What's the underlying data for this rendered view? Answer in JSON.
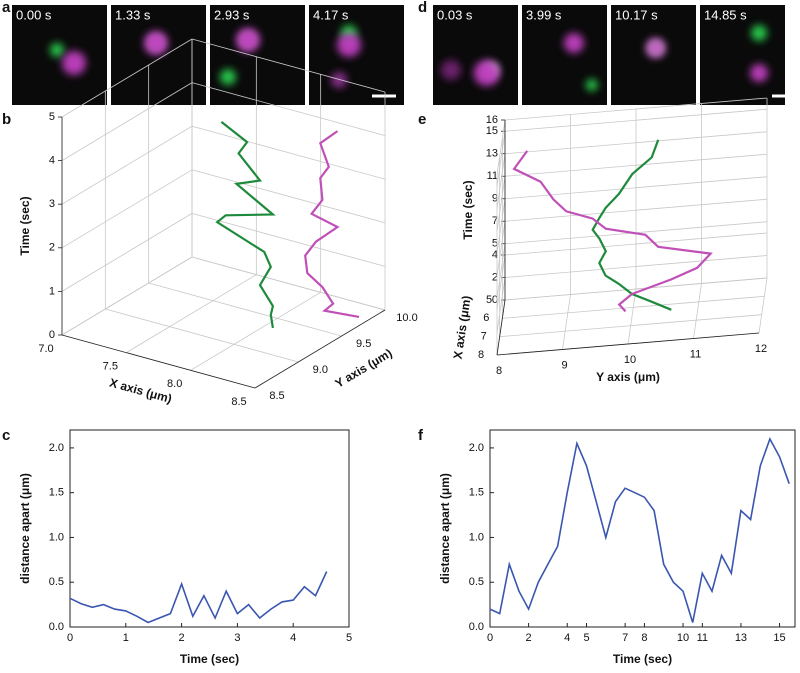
{
  "figure": {
    "panel_labels": [
      "a",
      "b",
      "c",
      "d",
      "e",
      "f"
    ],
    "frames_a": [
      "0.00 s",
      "1.33 s",
      "2.93 s",
      "4.17 s"
    ],
    "frames_d": [
      "0.03 s",
      "3.99 s",
      "10.17 s",
      "14.85 s"
    ]
  },
  "chart_data": [
    {
      "type": "line3d",
      "xlabel": "X axis (μm)",
      "ylabel": "Y axis (μm)",
      "zlabel": "Time (sec)",
      "xlim": [
        7,
        8.5
      ],
      "ylim": [
        8.5,
        10
      ],
      "zlim": [
        0,
        5
      ],
      "xticks": [
        {
          "value": 7,
          "label": "7.0"
        },
        7.5,
        {
          "value": 8,
          "label": "8.0"
        },
        8.5
      ],
      "yticks": [
        8.5,
        {
          "value": 9,
          "label": "9.0"
        },
        9.5,
        {
          "value": 10,
          "label": "10.0"
        }
      ],
      "zticks": [
        0,
        1,
        2,
        3,
        4,
        5
      ],
      "series": [
        {
          "color": "#1e8a3c",
          "x": [
            7.7,
            7.9,
            7.8,
            8.0,
            7.75,
            8.1,
            7.7,
            7.6,
            8.0,
            8.05,
            8.0,
            8.1,
            8.05,
            8.1
          ],
          "y": [
            9.3,
            9.3,
            9.35,
            9.3,
            9.4,
            9.3,
            9.35,
            9.4,
            9.35,
            9.35,
            9.3,
            9.3,
            9.35,
            9.3
          ],
          "z": [
            4.5,
            4.2,
            3.8,
            3.4,
            3.0,
            2.7,
            2.3,
            2.0,
            1.7,
            1.4,
            1.0,
            0.6,
            0.3,
            0.1
          ]
        },
        {
          "color": "#c050b8",
          "x": [
            8.4,
            8.3,
            8.4,
            8.3,
            8.35,
            8.3,
            8.4,
            8.3,
            8.25,
            8.3,
            8.35,
            8.4,
            8.3,
            8.5
          ],
          "y": [
            9.6,
            9.55,
            9.5,
            9.55,
            9.5,
            9.45,
            9.6,
            9.5,
            9.45,
            9.4,
            9.5,
            9.55,
            9.6,
            9.7
          ],
          "z": [
            4.5,
            4.2,
            3.8,
            3.4,
            3.0,
            2.7,
            2.3,
            2.0,
            1.7,
            1.4,
            1.0,
            0.6,
            0.3,
            0.2
          ]
        }
      ]
    },
    {
      "type": "line3d",
      "xlabel": "X axis (μm)",
      "ylabel": "Y axis (μm)",
      "zlabel": "Time (sec)",
      "xlim": [
        5,
        8
      ],
      "ylim": [
        8,
        12
      ],
      "zlim": [
        0,
        16
      ],
      "xticks": [
        5,
        6,
        7,
        8
      ],
      "yticks": [
        8,
        9,
        10,
        11,
        12
      ],
      "zticks": [
        0,
        2,
        4,
        5,
        7,
        9,
        11,
        13,
        15,
        16
      ],
      "series": [
        {
          "color": "#1e8a3c",
          "x": [
            6.5,
            6.5,
            6.4,
            6.5,
            6.6,
            6.5,
            6.5,
            6.4,
            6.5,
            6.5,
            6.6,
            6.5,
            6.5,
            6.4,
            6.5
          ],
          "y": [
            10.4,
            10.3,
            10.0,
            9.8,
            9.6,
            9.5,
            9.4,
            9.5,
            9.6,
            9.5,
            9.6,
            9.8,
            10.0,
            10.3,
            10.6
          ],
          "z": [
            15.5,
            14,
            12.5,
            11,
            10,
            9,
            8,
            7,
            6,
            5,
            4,
            3,
            2,
            1,
            0.3
          ]
        },
        {
          "color": "#c050b8",
          "x": [
            6.5,
            6.5,
            6.4,
            6.5,
            6.6,
            6.5,
            6.5,
            6.4,
            6.5,
            6.5,
            6.6,
            6.5,
            6.5,
            6.4,
            6.5
          ],
          "y": [
            8.4,
            8.2,
            8.6,
            8.8,
            9.0,
            9.4,
            9.6,
            10.2,
            10.4,
            11.2,
            11.0,
            10.6,
            10.0,
            9.8,
            9.9
          ],
          "z": [
            15.5,
            14,
            12.5,
            11,
            10,
            9,
            8,
            7,
            6,
            5,
            4,
            3,
            2,
            1,
            0.5
          ]
        }
      ]
    },
    {
      "type": "line",
      "xlabel": "Time (sec)",
      "ylabel": "distance apart (μm)",
      "color": "#3a56b0",
      "xlim": [
        0,
        5
      ],
      "ylim": [
        0,
        2.2
      ],
      "xticks": [
        0,
        1,
        2,
        3,
        4,
        5
      ],
      "yticks": [
        {
          "value": 0,
          "label": "0.0"
        },
        0.5,
        {
          "value": 1,
          "label": "1.0"
        },
        1.5,
        {
          "value": 2,
          "label": "2.0"
        }
      ],
      "x": [
        0,
        0.2,
        0.4,
        0.6,
        0.8,
        1,
        1.2,
        1.4,
        1.6,
        1.8,
        2,
        2.2,
        2.4,
        2.6,
        2.8,
        3,
        3.2,
        3.4,
        3.6,
        3.8,
        4,
        4.2,
        4.4,
        4.6
      ],
      "values": [
        0.32,
        0.26,
        0.22,
        0.25,
        0.2,
        0.18,
        0.12,
        0.05,
        0.1,
        0.15,
        0.48,
        0.12,
        0.35,
        0.1,
        0.4,
        0.15,
        0.25,
        0.1,
        0.2,
        0.28,
        0.3,
        0.45,
        0.35,
        0.62
      ]
    },
    {
      "type": "line",
      "xlabel": "Time (sec)",
      "ylabel": "distance apart (μm)",
      "color": "#3a56b0",
      "xlim": [
        0,
        15.8
      ],
      "ylim": [
        0,
        2.2
      ],
      "xticks": [
        0,
        2,
        4,
        5,
        7,
        8,
        10,
        11,
        13,
        15
      ],
      "yticks": [
        {
          "value": 0,
          "label": "0.0"
        },
        0.5,
        {
          "value": 1,
          "label": "1.0"
        },
        1.5,
        {
          "value": 2,
          "label": "2.0"
        }
      ],
      "x": [
        0,
        0.5,
        1,
        1.5,
        2,
        2.5,
        3,
        3.5,
        4,
        4.5,
        5,
        5.5,
        6,
        6.5,
        7,
        7.5,
        8,
        8.5,
        9,
        9.5,
        10,
        10.5,
        11,
        11.5,
        12,
        12.5,
        13,
        13.5,
        14,
        14.5,
        15,
        15.5
      ],
      "values": [
        0.2,
        0.15,
        0.7,
        0.4,
        0.2,
        0.5,
        0.7,
        0.9,
        1.5,
        2.05,
        1.8,
        1.4,
        1.0,
        1.4,
        1.55,
        1.5,
        1.45,
        1.3,
        0.7,
        0.5,
        0.4,
        0.05,
        0.6,
        0.4,
        0.8,
        0.6,
        1.3,
        1.2,
        1.8,
        2.1,
        1.9,
        1.6
      ]
    }
  ]
}
